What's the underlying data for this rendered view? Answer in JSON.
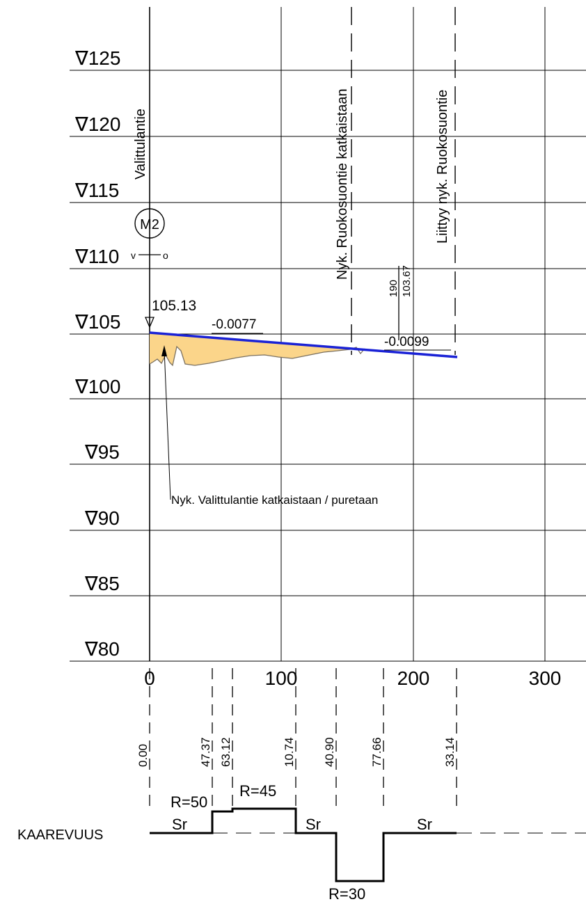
{
  "profile": {
    "elevation_labels": [
      "∇125",
      "∇120",
      "∇115",
      "∇110",
      "∇105",
      "∇100",
      "∇95",
      "∇90",
      "∇85",
      "∇80"
    ],
    "x_tick_labels": [
      "0",
      "100",
      "200",
      "300"
    ],
    "road_name": "Valittulantie",
    "marker": {
      "label": "M2",
      "left_char": "v",
      "right_char": "o"
    },
    "start_elevation": "105.13",
    "grade_1": "-0.0077",
    "grade_2": "-0.0099",
    "break_station": "190",
    "break_elevation": "103.67",
    "vertical_notes": [
      "Nyk. Ruokosuontie katkaistaan",
      "Liittyy nyk. Ruokosuontie"
    ],
    "annotation": "Nyk. Valittulantie katkaistaan / puretaan",
    "colors": {
      "design_line": "#1a22d6",
      "cut_fill": "#fbd58a",
      "ground": "#7a7060"
    }
  },
  "stations": [
    "0.00",
    "47.37",
    "63.12",
    "10.74",
    "40.90",
    "77.66",
    "33.14"
  ],
  "curvature": {
    "title": "KAAREVUUS",
    "labels": [
      "R=50",
      "R=45",
      "R=30",
      "Sr",
      "Sr",
      "Sr"
    ]
  }
}
